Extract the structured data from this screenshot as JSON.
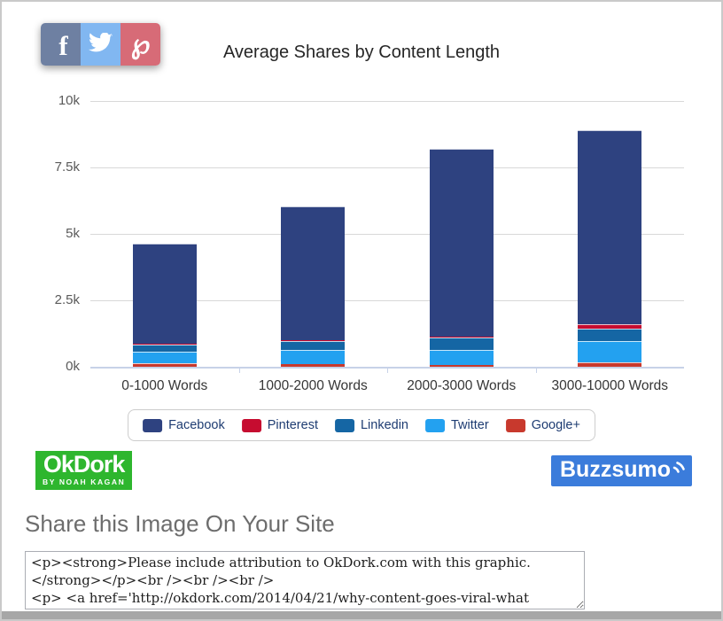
{
  "share_buttons": {
    "facebook": {
      "icon": "facebook-f-icon",
      "glyph": "f",
      "color": "#6e80a2"
    },
    "twitter": {
      "icon": "twitter-bird-icon",
      "color": "#81b7f1"
    },
    "pinterest": {
      "icon": "pinterest-p-icon",
      "glyph": "℘",
      "color": "#d76b77"
    }
  },
  "chart_data": {
    "type": "bar",
    "stacked": true,
    "title": "Average Shares by Content Length",
    "categories": [
      "0-1000 Words",
      "1000-2000 Words",
      "2000-3000 Words",
      "3000-10000 Words"
    ],
    "series": [
      {
        "name": "Google+",
        "color": "#c8392d",
        "values": [
          130,
          100,
          80,
          170
        ]
      },
      {
        "name": "Twitter",
        "color": "#23a1f0",
        "values": [
          440,
          520,
          580,
          800
        ]
      },
      {
        "name": "Linkedin",
        "color": "#1566a4",
        "values": [
          250,
          320,
          450,
          450
        ]
      },
      {
        "name": "Pinterest",
        "color": "#c60c30",
        "values": [
          30,
          30,
          40,
          180
        ]
      },
      {
        "name": "Facebook",
        "color": "#2e4280",
        "values": [
          3750,
          5030,
          7050,
          7300
        ]
      }
    ],
    "totals_approx": [
      4600,
      6000,
      8200,
      8900
    ],
    "legend_order": [
      "Facebook",
      "Pinterest",
      "Linkedin",
      "Twitter",
      "Google+"
    ],
    "legend_position": "bottom",
    "legend_text_color": "#1e3c72",
    "y_ticks": [
      "10k",
      "7.5k",
      "5k",
      "2.5k",
      "0k"
    ],
    "ylim": [
      0,
      10000
    ],
    "grid": true
  },
  "logos": {
    "okdork": {
      "title": "OkDork",
      "subtitle": "BY NOAH KAGAN",
      "bg_color": "#2eb62e"
    },
    "buzzsumo": {
      "label": "Buzzsumo",
      "icon": "buzzsumo-signal-icon",
      "bg_color": "#3b7cdb"
    }
  },
  "share_section": {
    "heading": "Share this Image On Your Site",
    "embed_code": "<p><strong>Please include attribution to OkDork.com with this graphic.\n</strong></p><br /><br /><br />\n<p> <a href='http://okdork.com/2014/04/21/why-content-goes-viral-what"
  }
}
